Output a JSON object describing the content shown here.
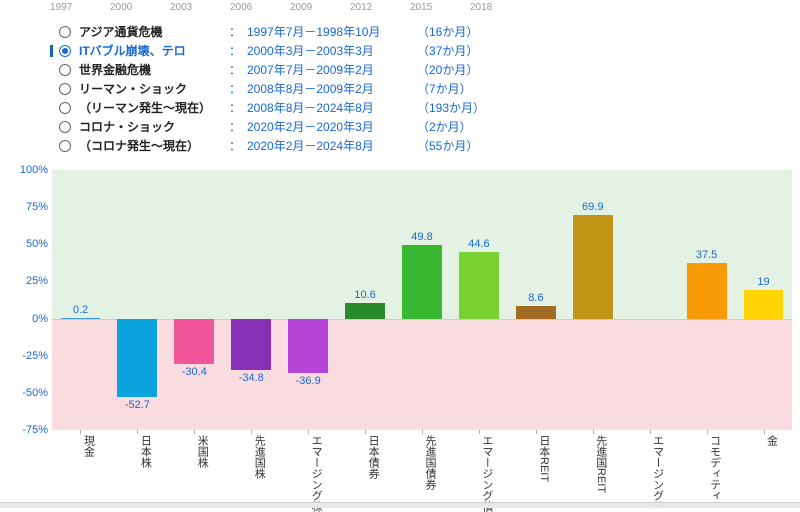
{
  "timeline_years": [
    "1997",
    "2000",
    "2003",
    "2006",
    "2009",
    "2012",
    "2015",
    "2018"
  ],
  "events": [
    {
      "label": "アジア通貨危機",
      "period": "1997年7月－1998年10月",
      "duration": "（16か月）",
      "selected": false,
      "marker": false
    },
    {
      "label": "ITバブル崩壊、テロ",
      "period": "2000年3月－2003年3月",
      "duration": "（37か月）",
      "selected": true,
      "marker": true
    },
    {
      "label": "世界金融危機",
      "period": "2007年7月－2009年2月",
      "duration": "（20か月）",
      "selected": false,
      "marker": false
    },
    {
      "label": "リーマン・ショック",
      "period": "2008年8月－2009年2月",
      "duration": "（7か月）",
      "selected": false,
      "marker": false
    },
    {
      "label": "（リーマン発生～現在）",
      "period": "2008年8月－2024年8月",
      "duration": "（193か月）",
      "selected": false,
      "marker": false
    },
    {
      "label": "コロナ・ショック",
      "period": "2020年2月－2020年3月",
      "duration": "（2か月）",
      "selected": false,
      "marker": false
    },
    {
      "label": "（コロナ発生～現在）",
      "period": "2020年2月－2024年8月",
      "duration": "（55か月）",
      "selected": false,
      "marker": false
    }
  ],
  "chart": {
    "type": "bar",
    "ylim": [
      -75,
      100
    ],
    "yticks": [
      -75,
      -50,
      -25,
      0,
      25,
      50,
      75,
      100
    ],
    "ytick_format_percent": true,
    "background_pos": "#e3f2e3",
    "background_neg": "#fadbe0",
    "label_color": "#1868d6",
    "categories": [
      "現金",
      "日本株",
      "米国株",
      "先進国株",
      "エマージング株",
      "日本債券",
      "先進国債券",
      "エマージング債",
      "日本REIT",
      "先進国REIT",
      "エマージングR",
      "コモディティ",
      "金"
    ],
    "values": [
      0.2,
      -52.7,
      -30.4,
      -34.8,
      -36.9,
      10.6,
      49.8,
      44.6,
      8.6,
      69.9,
      null,
      37.5,
      19
    ],
    "bar_colors": [
      "#3b9de0",
      "#0aa3de",
      "#f1559a",
      "#8631b5",
      "#b445d7",
      "#2a8a2a",
      "#39b931",
      "#7bd132",
      "#a36a21",
      "#bf9417",
      "#ffffff",
      "#f79a05",
      "#ffd304"
    ],
    "bar_width": 0.7,
    "label_fontsize": 11,
    "axis_fontsize": 11
  }
}
